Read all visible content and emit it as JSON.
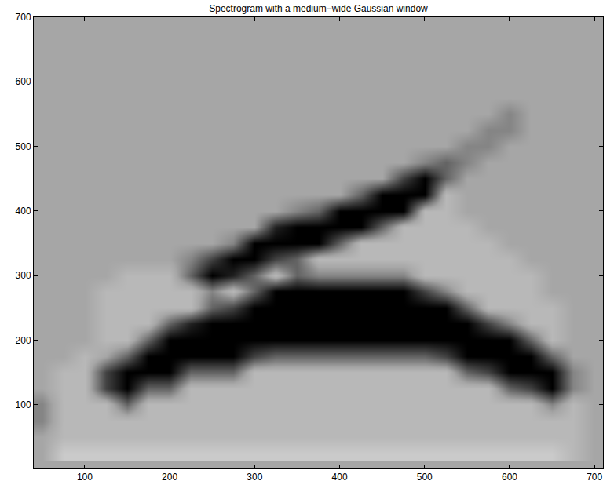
{
  "chart_data": {
    "type": "heatmap",
    "title": "Spectrogram with a medium−wide Gaussian window",
    "xlim": [
      40,
      710
    ],
    "ylim": [
      1,
      700
    ],
    "xticks": [
      100,
      200,
      300,
      400,
      500,
      600,
      700
    ],
    "yticks": [
      100,
      200,
      300,
      400,
      500,
      600,
      700
    ],
    "zlim": [
      0,
      10
    ],
    "x": [
      50,
      75,
      100,
      125,
      150,
      175,
      200,
      225,
      250,
      275,
      300,
      325,
      350,
      375,
      400,
      425,
      450,
      475,
      500,
      525,
      550,
      575,
      600,
      625,
      650,
      675,
      700
    ],
    "y": [
      25,
      50,
      75,
      100,
      125,
      150,
      175,
      200,
      225,
      250,
      275,
      300,
      325,
      350,
      375,
      400,
      425,
      450,
      475,
      500,
      525,
      550,
      575,
      600,
      625,
      650,
      675
    ],
    "z": [
      [
        5,
        3,
        3,
        3,
        3,
        3,
        3,
        3,
        3,
        3,
        3,
        3,
        3,
        3,
        3,
        3,
        3,
        3,
        3,
        3,
        3,
        3,
        3,
        3,
        3,
        4,
        5
      ],
      [
        5,
        4,
        4,
        4,
        4,
        4,
        4,
        4,
        4,
        4,
        4,
        4,
        4,
        4,
        4,
        4,
        4,
        4,
        4,
        4,
        4,
        4,
        4,
        4,
        4,
        4,
        5
      ],
      [
        6,
        4,
        4,
        4,
        4,
        4,
        4,
        4,
        4,
        4,
        4,
        4,
        4,
        4,
        4,
        4,
        4,
        4,
        4,
        4,
        4,
        4,
        4,
        4,
        4,
        4,
        5
      ],
      [
        6,
        4,
        4,
        4,
        7,
        4,
        4,
        4,
        4,
        4,
        4,
        4,
        4,
        4,
        4,
        4,
        4,
        4,
        4,
        4,
        4,
        4,
        4,
        4,
        6,
        4,
        5
      ],
      [
        5,
        4,
        4,
        8,
        10,
        7,
        7,
        4,
        4,
        4,
        4,
        4,
        4,
        4,
        4,
        4,
        4,
        4,
        4,
        4,
        4,
        4,
        7,
        8,
        10,
        6,
        5
      ],
      [
        5,
        4,
        4,
        8,
        10,
        10,
        10,
        7,
        7,
        7,
        4,
        4,
        4,
        4,
        4,
        4,
        4,
        4,
        4,
        4,
        7,
        8,
        10,
        10,
        10,
        6,
        5
      ],
      [
        5,
        5,
        4,
        5,
        7,
        10,
        10,
        10,
        10,
        10,
        8,
        7,
        7,
        7,
        7,
        7,
        7,
        7,
        7,
        8,
        10,
        10,
        10,
        10,
        7,
        5,
        5
      ],
      [
        5,
        5,
        5,
        4,
        4,
        7,
        10,
        10,
        10,
        10,
        10,
        10,
        10,
        10,
        10,
        10,
        10,
        10,
        10,
        10,
        10,
        10,
        10,
        7,
        4,
        5,
        5
      ],
      [
        5,
        5,
        5,
        4,
        4,
        4,
        7,
        9,
        10,
        10,
        10,
        10,
        10,
        10,
        10,
        10,
        10,
        10,
        10,
        10,
        10,
        8,
        6,
        4,
        4,
        5,
        5
      ],
      [
        5,
        5,
        5,
        4,
        4,
        4,
        4,
        4,
        7,
        8,
        10,
        10,
        10,
        10,
        10,
        10,
        10,
        10,
        10,
        10,
        7,
        4,
        4,
        4,
        4,
        5,
        5
      ],
      [
        5,
        5,
        5,
        4,
        4,
        4,
        4,
        4,
        6,
        4,
        7,
        10,
        10,
        10,
        10,
        10,
        10,
        10,
        8,
        6,
        4,
        4,
        4,
        4,
        5,
        5,
        5
      ],
      [
        5,
        5,
        5,
        5,
        4,
        4,
        4,
        7,
        10,
        9,
        7,
        4,
        7,
        6,
        6,
        6,
        6,
        6,
        4,
        4,
        4,
        4,
        4,
        4,
        5,
        5,
        5
      ],
      [
        5,
        5,
        5,
        5,
        5,
        5,
        5,
        6,
        8,
        10,
        10,
        8,
        7,
        4,
        4,
        4,
        4,
        4,
        4,
        4,
        4,
        4,
        4,
        5,
        5,
        5,
        5
      ],
      [
        5,
        5,
        5,
        5,
        5,
        5,
        5,
        5,
        5,
        6,
        10,
        10,
        10,
        10,
        7,
        4,
        4,
        4,
        4,
        4,
        4,
        4,
        5,
        5,
        5,
        5,
        5
      ],
      [
        5,
        5,
        5,
        5,
        5,
        5,
        5,
        5,
        5,
        5,
        5,
        9,
        10,
        10,
        10,
        10,
        7,
        4,
        4,
        4,
        4,
        5,
        5,
        5,
        5,
        5,
        5
      ],
      [
        5,
        5,
        5,
        5,
        5,
        5,
        5,
        5,
        5,
        5,
        5,
        5,
        6,
        7,
        10,
        10,
        10,
        10,
        4,
        4,
        5,
        5,
        5,
        5,
        5,
        5,
        5
      ],
      [
        5,
        5,
        5,
        5,
        5,
        5,
        5,
        5,
        5,
        5,
        5,
        5,
        5,
        5,
        5,
        7,
        10,
        10,
        10,
        4,
        5,
        5,
        5,
        5,
        5,
        5,
        5
      ],
      [
        5,
        5,
        5,
        5,
        5,
        5,
        5,
        5,
        5,
        5,
        5,
        5,
        5,
        5,
        5,
        5,
        5,
        8,
        10,
        7,
        5,
        5,
        5,
        5,
        5,
        5,
        5
      ],
      [
        5,
        5,
        5,
        5,
        5,
        5,
        5,
        5,
        5,
        5,
        5,
        5,
        5,
        5,
        5,
        5,
        5,
        5,
        6,
        7,
        6,
        5,
        5,
        5,
        5,
        5,
        5
      ],
      [
        5,
        5,
        5,
        5,
        5,
        5,
        5,
        5,
        5,
        5,
        5,
        5,
        5,
        5,
        5,
        5,
        5,
        5,
        5,
        5,
        6,
        6,
        5,
        5,
        5,
        5,
        5
      ],
      [
        5,
        5,
        5,
        5,
        5,
        5,
        5,
        5,
        5,
        5,
        5,
        5,
        5,
        5,
        5,
        5,
        5,
        5,
        5,
        5,
        5,
        6,
        6,
        5,
        5,
        5,
        5
      ],
      [
        5,
        5,
        5,
        5,
        5,
        5,
        5,
        5,
        5,
        5,
        5,
        5,
        5,
        5,
        5,
        5,
        5,
        5,
        5,
        5,
        5,
        5,
        6,
        5,
        5,
        5,
        5
      ],
      [
        5,
        5,
        5,
        5,
        5,
        5,
        5,
        5,
        5,
        5,
        5,
        5,
        5,
        5,
        5,
        5,
        5,
        5,
        5,
        5,
        5,
        5,
        5,
        5,
        5,
        5,
        5
      ],
      [
        5,
        5,
        5,
        5,
        5,
        5,
        5,
        5,
        5,
        5,
        5,
        5,
        5,
        5,
        5,
        5,
        5,
        5,
        5,
        5,
        5,
        5,
        5,
        5,
        5,
        5,
        5
      ],
      [
        5,
        5,
        5,
        5,
        5,
        5,
        5,
        5,
        5,
        5,
        5,
        5,
        5,
        5,
        5,
        5,
        5,
        5,
        5,
        5,
        5,
        5,
        5,
        5,
        5,
        5,
        5
      ],
      [
        5,
        5,
        5,
        5,
        5,
        5,
        5,
        5,
        5,
        5,
        5,
        5,
        5,
        5,
        5,
        5,
        5,
        5,
        5,
        5,
        5,
        5,
        5,
        5,
        5,
        5,
        5
      ],
      [
        5,
        5,
        5,
        5,
        5,
        5,
        5,
        5,
        5,
        5,
        5,
        5,
        5,
        5,
        5,
        5,
        5,
        5,
        5,
        5,
        5,
        5,
        5,
        5,
        5,
        5,
        5
      ]
    ]
  }
}
